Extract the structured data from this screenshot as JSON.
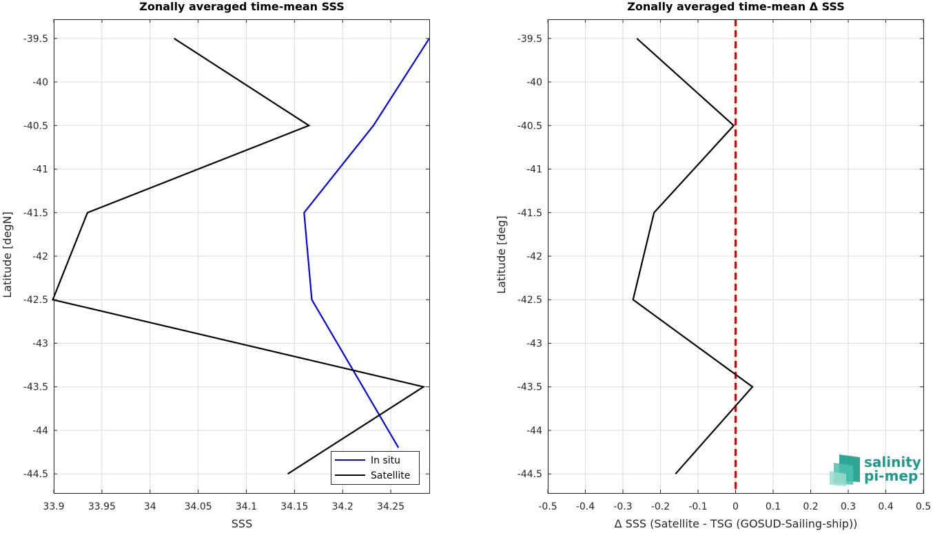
{
  "chart_data": [
    {
      "type": "line",
      "title": "Zonally averaged time-mean SSS",
      "xlabel": "SSS",
      "ylabel": "Latitude [degN]",
      "xlim": [
        33.9,
        34.29
      ],
      "ylim": [
        -44.72,
        -39.28
      ],
      "xticks": [
        33.9,
        33.95,
        34,
        34.05,
        34.1,
        34.15,
        34.2,
        34.25
      ],
      "xtick_labels": [
        "33.9",
        "33.95",
        "34",
        "34.05",
        "34.1",
        "34.15",
        "34.2",
        "34.25"
      ],
      "yticks": [
        -39.5,
        -40,
        -40.5,
        -41,
        -41.5,
        -42,
        -42.5,
        -43,
        -43.5,
        -44,
        -44.5
      ],
      "ytick_labels": [
        "-39.5",
        "-40",
        "-40.5",
        "-41",
        "-41.5",
        "-42",
        "-42.5",
        "-43",
        "-43.5",
        "-44",
        "-44.5"
      ],
      "grid": true,
      "legend": "bottom-right",
      "series": [
        {
          "name": "In situ",
          "color": "#0000ff",
          "points": [
            {
              "x": 34.29,
              "y": -39.5
            },
            {
              "x": 34.232,
              "y": -40.5
            },
            {
              "x": 34.16,
              "y": -41.5
            },
            {
              "x": 34.168,
              "y": -42.5
            },
            {
              "x": 34.258,
              "y": -44.2
            }
          ]
        },
        {
          "name": "Satellite",
          "color": "#000000",
          "points": [
            {
              "x": 34.025,
              "y": -39.5
            },
            {
              "x": 34.165,
              "y": -40.5
            },
            {
              "x": 33.935,
              "y": -41.5
            },
            {
              "x": 33.899,
              "y": -42.5
            },
            {
              "x": 34.284,
              "y": -43.5
            },
            {
              "x": 34.143,
              "y": -44.5
            }
          ]
        }
      ]
    },
    {
      "type": "line",
      "title": "Zonally averaged time-mean Δ SSS",
      "xlabel": "Δ SSS (Satellite - TSG (GOSUD-Sailing-ship))",
      "ylabel": "Latitude [deg]",
      "xlim": [
        -0.5,
        0.5
      ],
      "ylim": [
        -44.72,
        -39.28
      ],
      "xticks": [
        -0.5,
        -0.4,
        -0.3,
        -0.2,
        -0.1,
        0,
        0.1,
        0.2,
        0.3,
        0.4,
        0.5
      ],
      "xtick_labels": [
        "-0.5",
        "-0.4",
        "-0.3",
        "-0.2",
        "-0.1",
        "0",
        "0.1",
        "0.2",
        "0.3",
        "0.4",
        "0.5"
      ],
      "yticks": [
        -39.5,
        -40,
        -40.5,
        -41,
        -41.5,
        -42,
        -42.5,
        -43,
        -43.5,
        -44,
        -44.5
      ],
      "ytick_labels": [
        "-39.5",
        "-40",
        "-40.5",
        "-41",
        "-41.5",
        "-42",
        "-42.5",
        "-43",
        "-43.5",
        "-44",
        "-44.5"
      ],
      "grid": true,
      "reference_line": {
        "x": 0,
        "color": "#e00000",
        "style": "dashed"
      },
      "series": [
        {
          "color": "#000000",
          "points": [
            {
              "x": -0.263,
              "y": -39.5
            },
            {
              "x": -0.005,
              "y": -40.5
            },
            {
              "x": -0.217,
              "y": -41.5
            },
            {
              "x": -0.273,
              "y": -42.5
            },
            {
              "x": 0.045,
              "y": -43.5
            },
            {
              "x": -0.16,
              "y": -44.5
            }
          ]
        }
      ]
    }
  ],
  "logo": {
    "line1": "salinity",
    "line2": "pi-mep",
    "color": "#1a9c8c"
  }
}
